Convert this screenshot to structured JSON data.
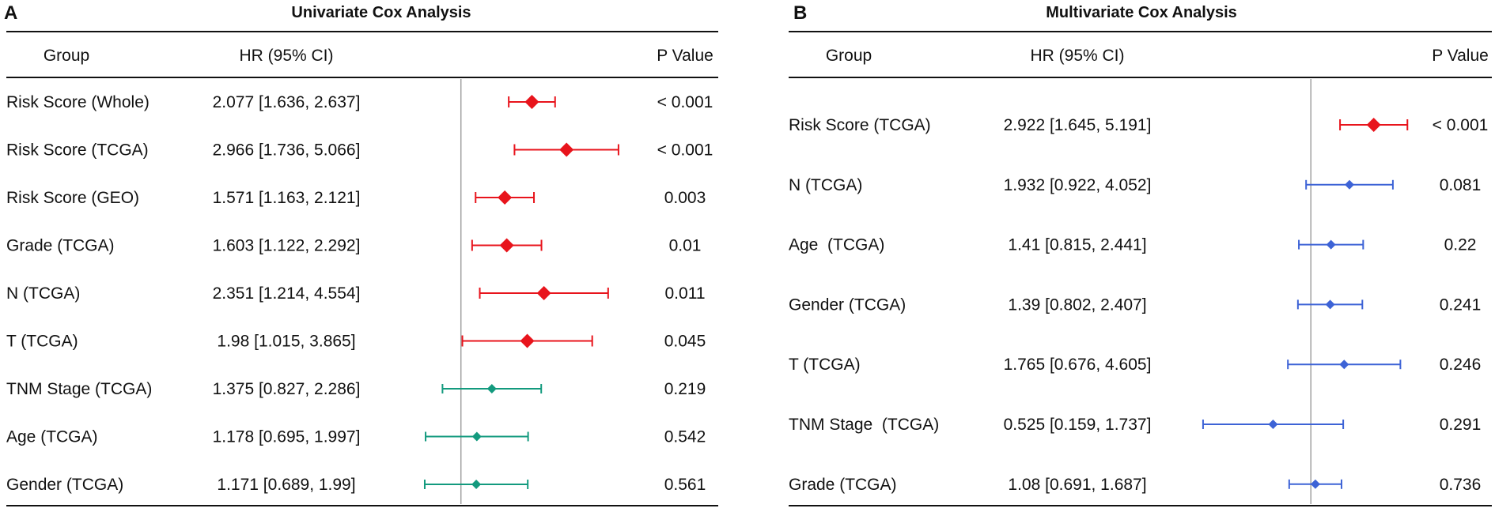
{
  "colors": {
    "significant": "#e8141c",
    "univariate_ns": "#139a7e",
    "multivariate_ns": "#3d63d6",
    "ref_line": "#a0a0a0",
    "rule": "#111111"
  },
  "chart_data": [
    {
      "type": "forest",
      "panel": "A",
      "title": "Univariate Cox Analysis",
      "title_color": "#159b80",
      "headers": {
        "group": "Group",
        "hr": "HR (95% CI)",
        "p": "P Value"
      },
      "xlim": [
        0.6,
        5.5
      ],
      "log_scale": true,
      "reference": 1,
      "rows": [
        {
          "group": "Risk Score (Whole)",
          "hr": 2.077,
          "lo": 1.636,
          "hi": 2.637,
          "hr_text": "2.077 [1.636, 2.637]",
          "p": "< 0.001",
          "significant": true
        },
        {
          "group": "Risk Score (TCGA)",
          "hr": 2.966,
          "lo": 1.736,
          "hi": 5.066,
          "hr_text": "2.966 [1.736, 5.066]",
          "p": "< 0.001",
          "significant": true
        },
        {
          "group": "Risk Score (GEO)",
          "hr": 1.571,
          "lo": 1.163,
          "hi": 2.121,
          "hr_text": "1.571 [1.163, 2.121]",
          "p": "0.003",
          "significant": true
        },
        {
          "group": "Grade (TCGA)",
          "hr": 1.603,
          "lo": 1.122,
          "hi": 2.292,
          "hr_text": "1.603 [1.122, 2.292]",
          "p": "0.01",
          "significant": true
        },
        {
          "group": "N (TCGA)",
          "hr": 2.351,
          "lo": 1.214,
          "hi": 4.554,
          "hr_text": "2.351 [1.214, 4.554]",
          "p": "0.011",
          "significant": true
        },
        {
          "group": "T (TCGA)",
          "hr": 1.98,
          "lo": 1.015,
          "hi": 3.865,
          "hr_text": "1.98 [1.015, 3.865]",
          "p": "0.045",
          "significant": true
        },
        {
          "group": "TNM Stage (TCGA)",
          "hr": 1.375,
          "lo": 0.827,
          "hi": 2.286,
          "hr_text": "1.375 [0.827, 2.286]",
          "p": "0.219",
          "significant": false
        },
        {
          "group": "Age (TCGA)",
          "hr": 1.178,
          "lo": 0.695,
          "hi": 1.997,
          "hr_text": "1.178 [0.695, 1.997]",
          "p": "0.542",
          "significant": false
        },
        {
          "group": "Gender (TCGA)",
          "hr": 1.171,
          "lo": 0.689,
          "hi": 1.99,
          "hr_text": "1.171 [0.689, 1.99]",
          "p": "0.561",
          "significant": false
        }
      ]
    },
    {
      "type": "forest",
      "panel": "B",
      "title": "Multivariate Cox Analysis",
      "title_color": "#4169e1",
      "headers": {
        "group": "Group",
        "hr": "HR (95% CI)",
        "p": "P Value"
      },
      "xlim": [
        0.13,
        6.0
      ],
      "log_scale": true,
      "reference": 1,
      "rows": [
        {
          "group": "Risk Score (TCGA)",
          "hr": 2.922,
          "lo": 1.645,
          "hi": 5.191,
          "hr_text": "2.922 [1.645, 5.191]",
          "p": "< 0.001",
          "significant": true
        },
        {
          "group": "N (TCGA)",
          "hr": 1.932,
          "lo": 0.922,
          "hi": 4.052,
          "hr_text": "1.932 [0.922, 4.052]",
          "p": "0.081",
          "significant": false
        },
        {
          "group": "Age  (TCGA)",
          "hr": 1.41,
          "lo": 0.815,
          "hi": 2.441,
          "hr_text": "1.41 [0.815, 2.441]",
          "p": "0.22",
          "significant": false
        },
        {
          "group": "Gender (TCGA)",
          "hr": 1.39,
          "lo": 0.802,
          "hi": 2.407,
          "hr_text": "1.39 [0.802, 2.407]",
          "p": "0.241",
          "significant": false
        },
        {
          "group": "T (TCGA)",
          "hr": 1.765,
          "lo": 0.676,
          "hi": 4.605,
          "hr_text": "1.765 [0.676, 4.605]",
          "p": "0.246",
          "significant": false
        },
        {
          "group": "TNM Stage  (TCGA)",
          "hr": 0.525,
          "lo": 0.159,
          "hi": 1.737,
          "hr_text": "0.525 [0.159, 1.737]",
          "p": "0.291",
          "significant": false
        },
        {
          "group": "Grade (TCGA)",
          "hr": 1.08,
          "lo": 0.691,
          "hi": 1.687,
          "hr_text": "1.08 [0.691, 1.687]",
          "p": "0.736",
          "significant": false
        }
      ]
    }
  ]
}
